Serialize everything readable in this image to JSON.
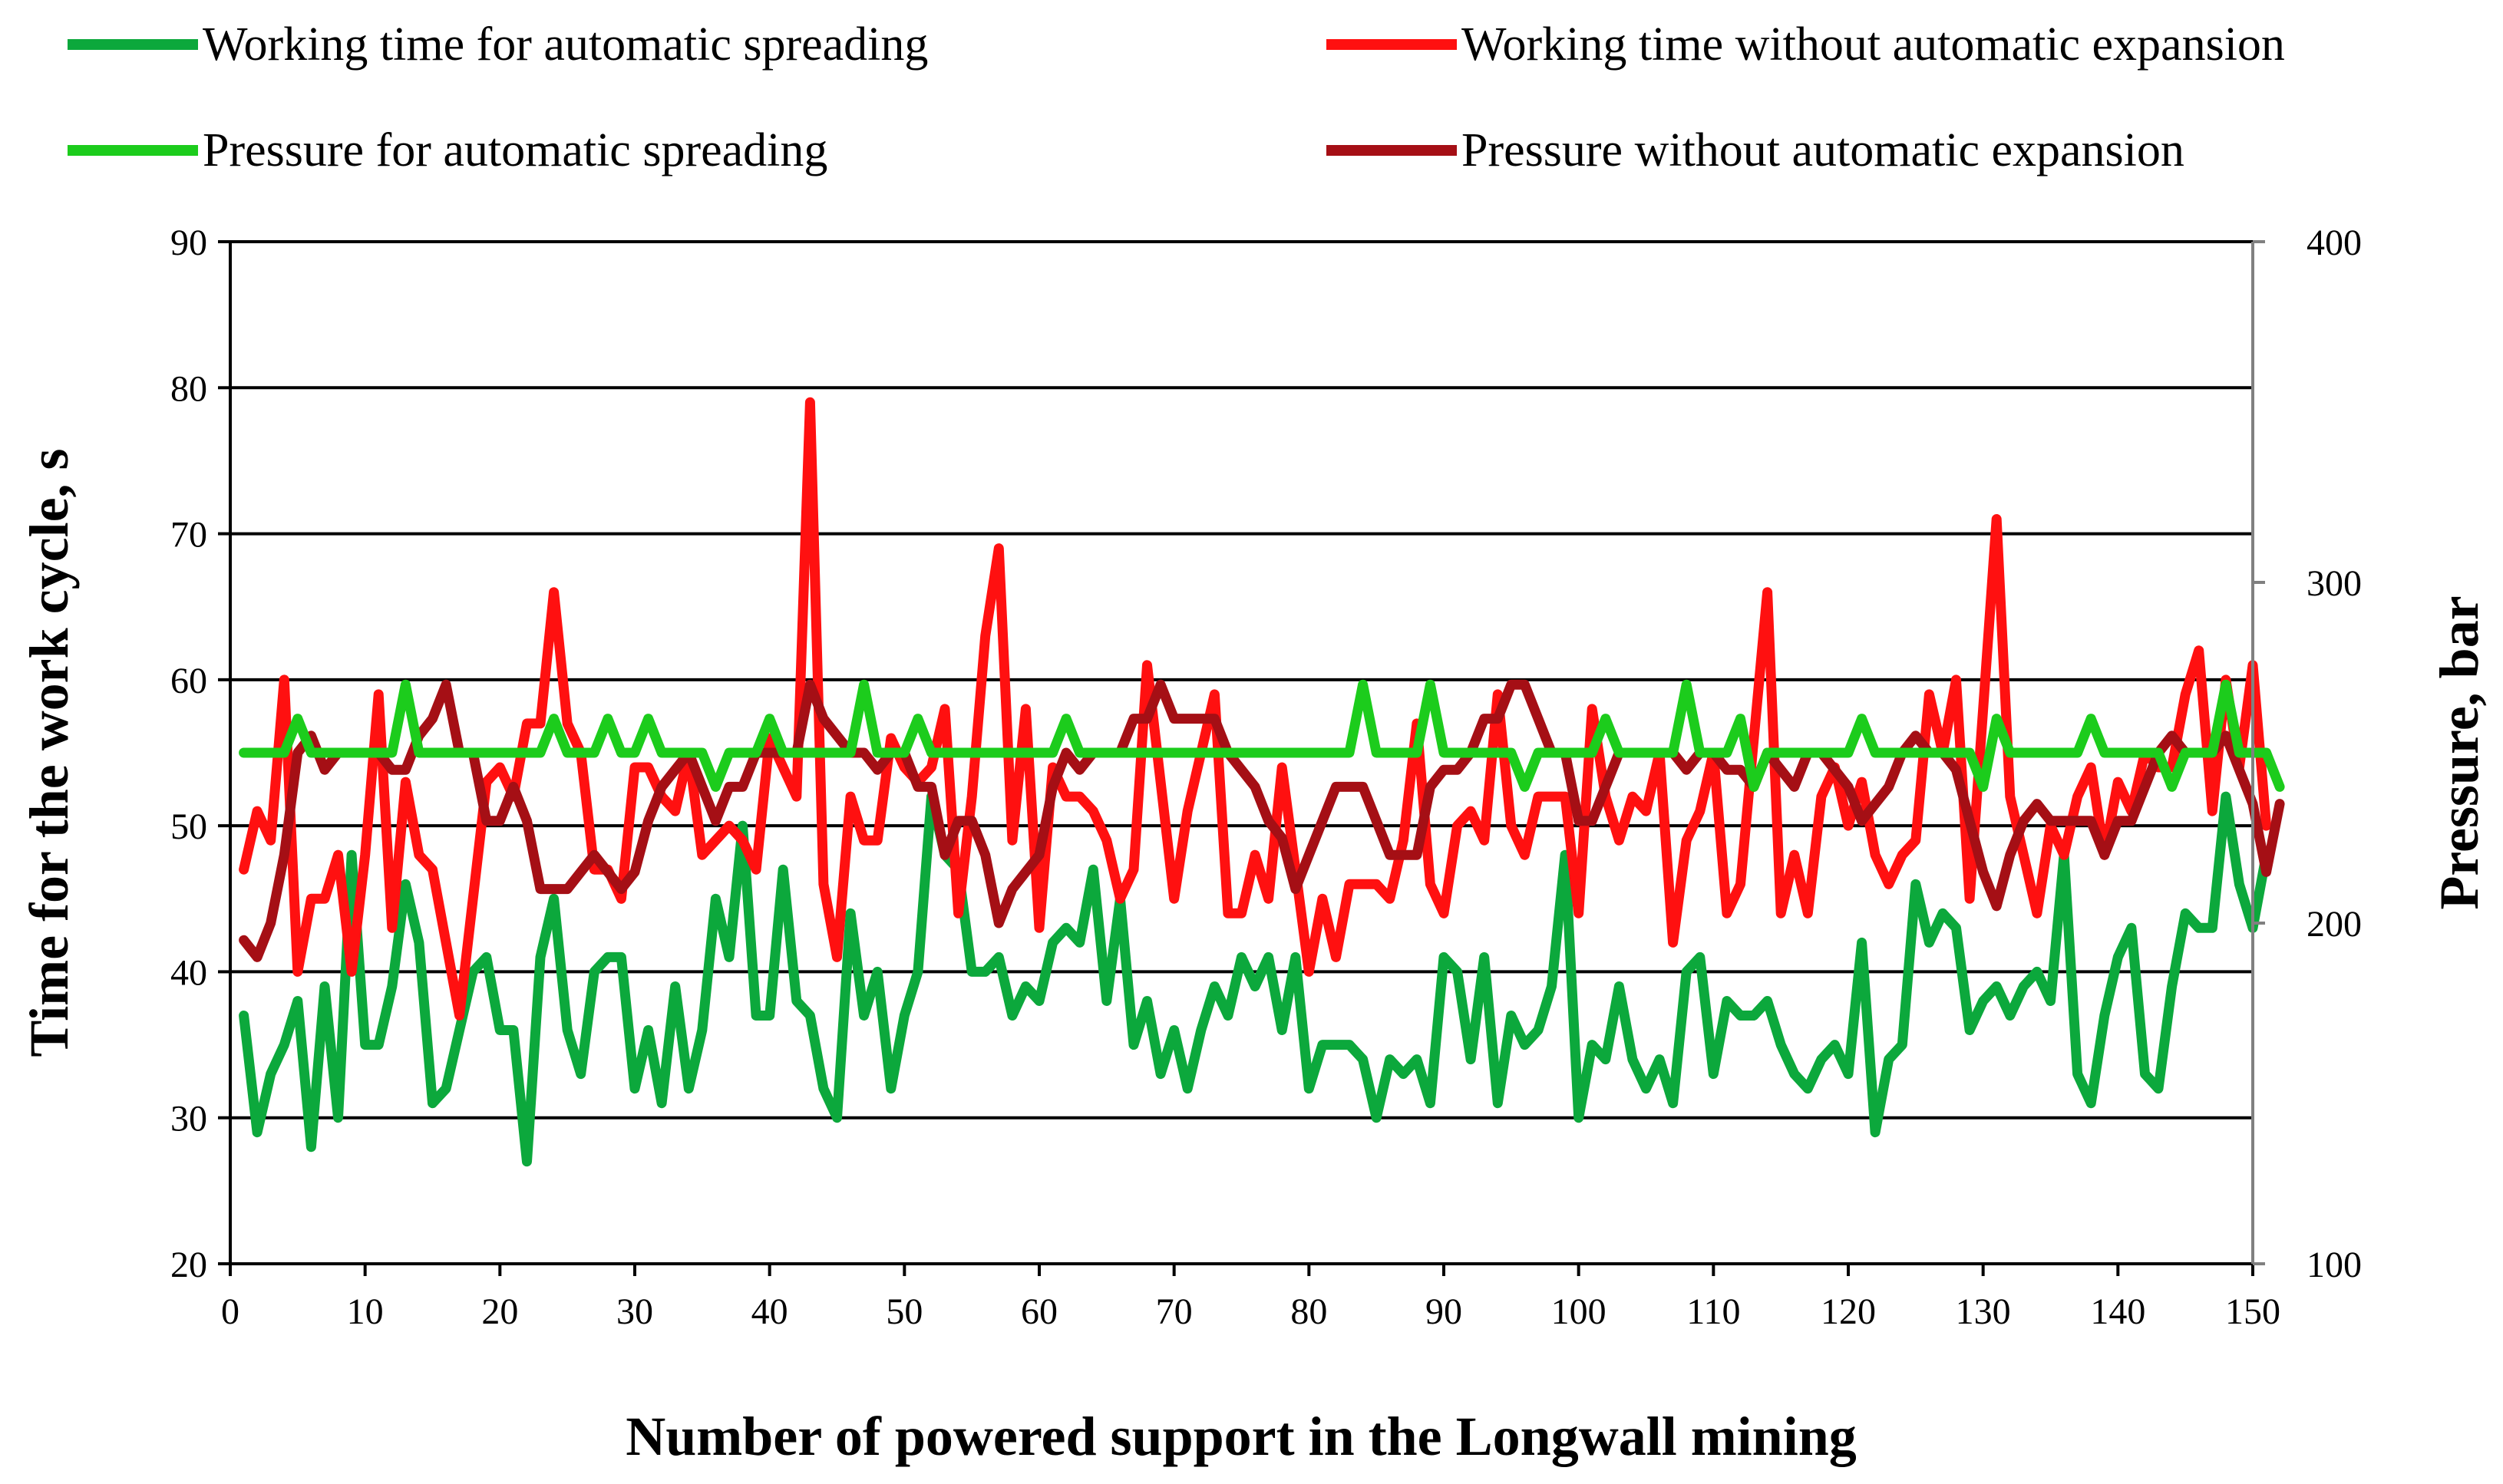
{
  "chart_data": {
    "type": "line",
    "xlabel": "Number of powered support in the Longwall mining",
    "ylabel": "Time for the work cycle, s",
    "y2label": "Pressure, bar",
    "xlim": [
      0,
      150
    ],
    "ylim": [
      20,
      90
    ],
    "y2lim": [
      100,
      400
    ],
    "x_ticks": [
      0,
      10,
      20,
      30,
      40,
      50,
      60,
      70,
      80,
      90,
      100,
      110,
      120,
      130,
      140,
      150
    ],
    "y_ticks": [
      20,
      30,
      40,
      50,
      60,
      70,
      80,
      90
    ],
    "y2_ticks": [
      100,
      200,
      300,
      400
    ],
    "grid": "horizontal",
    "legend_position": "top",
    "series": [
      {
        "name": "Working time for automatic spreading",
        "axis": "left",
        "color": "#0ca83c",
        "values": [
          37,
          29,
          33,
          35,
          38,
          28,
          39,
          30,
          48,
          35,
          35,
          39,
          46,
          42,
          31,
          32,
          36,
          40,
          41,
          36,
          36,
          27,
          41,
          45,
          36,
          33,
          40,
          41,
          41,
          32,
          36,
          31,
          39,
          32,
          36,
          45,
          41,
          50,
          37,
          37,
          47,
          38,
          37,
          32,
          30,
          44,
          37,
          40,
          32,
          37,
          40,
          52,
          48,
          47,
          40,
          40,
          41,
          37,
          39,
          38,
          42,
          43,
          42,
          47,
          38,
          45,
          35,
          38,
          33,
          36,
          32,
          36,
          39,
          37,
          41,
          39,
          41,
          36,
          41,
          32,
          35,
          35,
          35,
          34,
          30,
          34,
          33,
          34,
          31,
          41,
          40,
          34,
          41,
          31,
          37,
          35,
          36,
          39,
          48,
          30,
          35,
          34,
          39,
          34,
          32,
          34,
          31,
          40,
          41,
          33,
          38,
          37,
          37,
          38,
          35,
          33,
          32,
          34,
          35,
          33,
          42,
          29,
          34,
          35,
          46,
          42,
          44,
          43,
          36,
          38,
          39,
          37,
          39,
          40,
          38,
          48,
          33,
          31,
          37,
          41,
          43,
          33,
          32,
          39,
          44,
          43,
          43,
          52,
          46,
          43,
          48
        ]
      },
      {
        "name": "Working time without automatic expansion",
        "axis": "left",
        "color": "#ff1010",
        "values": [
          47,
          51,
          49,
          60,
          40,
          45,
          45,
          48,
          40,
          48,
          59,
          43,
          53,
          48,
          47,
          42,
          37,
          45,
          53,
          54,
          52,
          57,
          57,
          66,
          57,
          55,
          47,
          47,
          45,
          54,
          54,
          52,
          51,
          55,
          48,
          49,
          50,
          49,
          47,
          56,
          54,
          52,
          79,
          46,
          41,
          52,
          49,
          49,
          56,
          54,
          53,
          54,
          58,
          44,
          52,
          63,
          69,
          49,
          58,
          43,
          54,
          52,
          52,
          51,
          49,
          45,
          47,
          61,
          53,
          45,
          51,
          55,
          59,
          44,
          44,
          48,
          45,
          54,
          47,
          40,
          45,
          41,
          46,
          46,
          46,
          45,
          49,
          57,
          46,
          44,
          50,
          51,
          49,
          59,
          50,
          48,
          52,
          52,
          52,
          44,
          58,
          52,
          49,
          52,
          51,
          55,
          42,
          49,
          51,
          55,
          44,
          46,
          56,
          66,
          44,
          48,
          44,
          52,
          54,
          50,
          53,
          48,
          46,
          48,
          49,
          59,
          55,
          60,
          45,
          58,
          71,
          52,
          48,
          44,
          50,
          48,
          52,
          54,
          48,
          53,
          51,
          55,
          54,
          54,
          59,
          62,
          51,
          60,
          54,
          61,
          50
        ]
      },
      {
        "name": "Pressure for automatic spreading",
        "axis": "right",
        "color": "#1ccc1c",
        "values": [
          250,
          250,
          250,
          250,
          260,
          250,
          250,
          250,
          250,
          250,
          250,
          250,
          270,
          250,
          250,
          250,
          250,
          250,
          250,
          250,
          250,
          250,
          250,
          260,
          250,
          250,
          250,
          260,
          250,
          250,
          260,
          250,
          250,
          250,
          250,
          240,
          250,
          250,
          250,
          260,
          250,
          250,
          250,
          250,
          250,
          250,
          270,
          250,
          250,
          250,
          260,
          250,
          250,
          250,
          250,
          250,
          250,
          250,
          250,
          250,
          250,
          260,
          250,
          250,
          250,
          250,
          250,
          250,
          250,
          250,
          250,
          250,
          250,
          250,
          250,
          250,
          250,
          250,
          250,
          250,
          250,
          250,
          250,
          270,
          250,
          250,
          250,
          250,
          270,
          250,
          250,
          250,
          250,
          250,
          250,
          240,
          250,
          250,
          250,
          250,
          250,
          260,
          250,
          250,
          250,
          250,
          250,
          270,
          250,
          250,
          250,
          260,
          240,
          250,
          250,
          250,
          250,
          250,
          250,
          250,
          260,
          250,
          250,
          250,
          250,
          250,
          250,
          250,
          250,
          240,
          260,
          250,
          250,
          250,
          250,
          250,
          250,
          260,
          250,
          250,
          250,
          250,
          250,
          240,
          250,
          250,
          250,
          270,
          250,
          250,
          250,
          240
        ]
      },
      {
        "name": "Pressure without automatic expansion",
        "axis": "right",
        "color": "#a50f15",
        "values": [
          195,
          190,
          200,
          220,
          250,
          255,
          245,
          250,
          250,
          250,
          250,
          245,
          245,
          255,
          260,
          270,
          250,
          250,
          230,
          230,
          240,
          230,
          210,
          210,
          210,
          215,
          220,
          215,
          210,
          215,
          230,
          240,
          245,
          250,
          240,
          230,
          240,
          240,
          250,
          250,
          250,
          250,
          270,
          260,
          255,
          250,
          250,
          245,
          250,
          250,
          240,
          240,
          220,
          230,
          230,
          220,
          200,
          210,
          215,
          220,
          240,
          250,
          245,
          250,
          250,
          250,
          260,
          260,
          270,
          260,
          260,
          260,
          260,
          250,
          245,
          240,
          230,
          225,
          210,
          220,
          230,
          240,
          240,
          240,
          230,
          220,
          220,
          220,
          240,
          245,
          245,
          250,
          260,
          260,
          270,
          270,
          260,
          250,
          250,
          230,
          230,
          240,
          250,
          250,
          250,
          250,
          250,
          245,
          250,
          250,
          245,
          245,
          240,
          250,
          245,
          240,
          250,
          250,
          245,
          240,
          230,
          235,
          240,
          250,
          255,
          250,
          250,
          245,
          230,
          215,
          205,
          220,
          230,
          235,
          230,
          230,
          230,
          230,
          220,
          230,
          230,
          240,
          250,
          255,
          250,
          250,
          250,
          255,
          245,
          235,
          215,
          235
        ]
      }
    ]
  }
}
